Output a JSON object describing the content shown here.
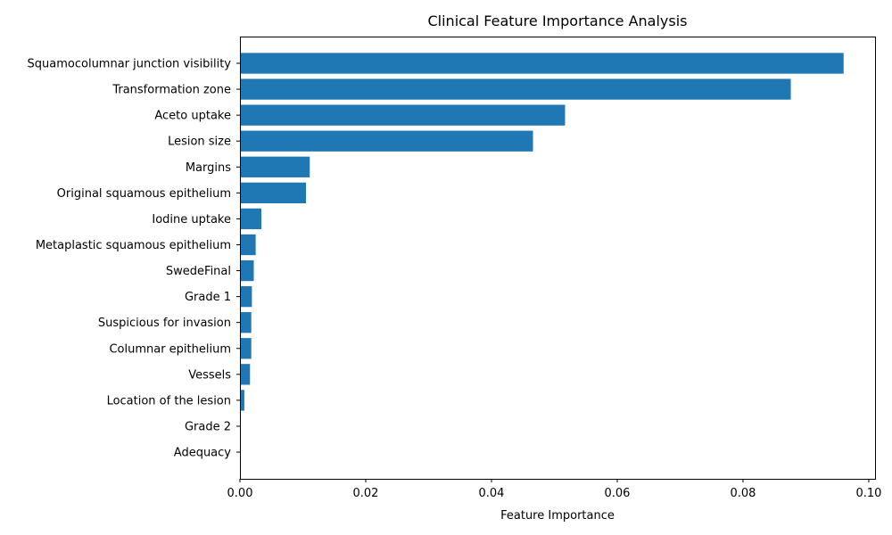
{
  "chart_data": {
    "type": "bar",
    "orientation": "horizontal",
    "title": "Clinical Feature Importance Analysis",
    "xlabel": "Feature Importance",
    "ylabel": "",
    "xlim": [
      0,
      0.101
    ],
    "xticks": [
      0.0,
      0.02,
      0.04,
      0.06,
      0.08,
      0.1
    ],
    "xtick_labels": [
      "0.00",
      "0.02",
      "0.04",
      "0.06",
      "0.08",
      "0.10"
    ],
    "grid": false,
    "bar_color": "#1f77b4",
    "categories": [
      "Squamocolumnar junction visibility",
      "Transformation zone",
      "Aceto uptake",
      "Lesion size",
      "Margins",
      "Original squamous epithelium",
      "Iodine uptake",
      "Metaplastic squamous epithelium",
      "SwedeFinal",
      "Grade 1",
      "Suspicious for invasion",
      "Columnar epithelium",
      "Vessels",
      "Location of the lesion",
      "Grade 2",
      "Adequacy"
    ],
    "values": [
      0.096,
      0.0876,
      0.0517,
      0.0466,
      0.0111,
      0.0105,
      0.0034,
      0.0025,
      0.0022,
      0.0019,
      0.0018,
      0.0018,
      0.0016,
      0.0007,
      0.0,
      0.0
    ]
  }
}
